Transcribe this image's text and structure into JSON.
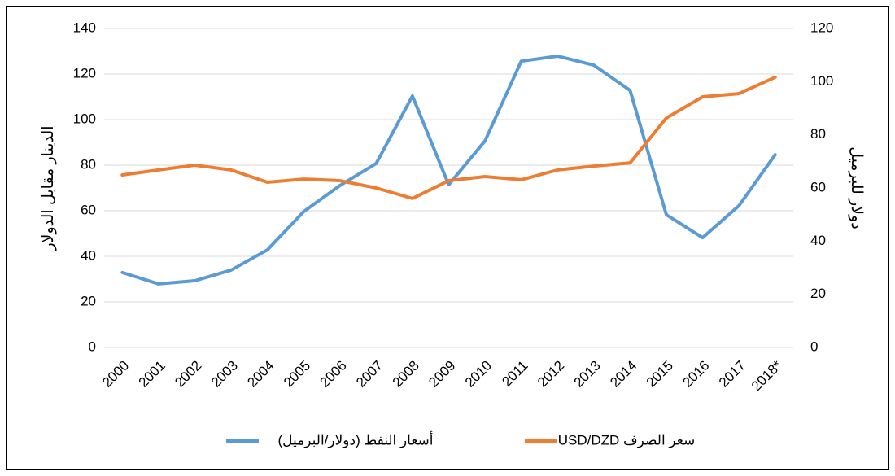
{
  "chart_data": {
    "type": "line",
    "categories": [
      "2000",
      "2001",
      "2002",
      "2003",
      "2004",
      "2005",
      "2006",
      "2007",
      "2008",
      "2009",
      "2010",
      "2011",
      "2012",
      "2013",
      "2014",
      "2015",
      "2016",
      "2017",
      "2018*"
    ],
    "ylabel": "الدينار مقابل الدولار",
    "y2label": "دولار للبرميل",
    "ylim": [
      0,
      140
    ],
    "yticks": [
      0,
      20,
      40,
      60,
      80,
      100,
      120,
      140
    ],
    "y2lim": [
      0,
      120
    ],
    "y2ticks": [
      0,
      20,
      40,
      60,
      80,
      100,
      120
    ],
    "grid": true,
    "legend": "bottom",
    "series": [
      {
        "name": "أسعار النفط (دولار/البرميل)",
        "color": "#5b9bd5",
        "axis": "y2",
        "values": [
          28.2,
          23.9,
          25.1,
          29.1,
          36.7,
          51.1,
          60.9,
          69.2,
          94.6,
          61.2,
          77.7,
          107.7,
          109.6,
          106.2,
          96.7,
          49.9,
          41.3,
          53.3,
          72.5
        ]
      },
      {
        "name": "سعر الصرف USD/DZD",
        "color": "#ed7d31",
        "axis": "y",
        "values": [
          75.7,
          77.9,
          80.0,
          77.9,
          72.5,
          73.9,
          73.2,
          70.0,
          65.4,
          73.2,
          75.0,
          73.6,
          77.9,
          79.6,
          81.0,
          100.7,
          110.0,
          111.4,
          118.6
        ]
      }
    ]
  }
}
